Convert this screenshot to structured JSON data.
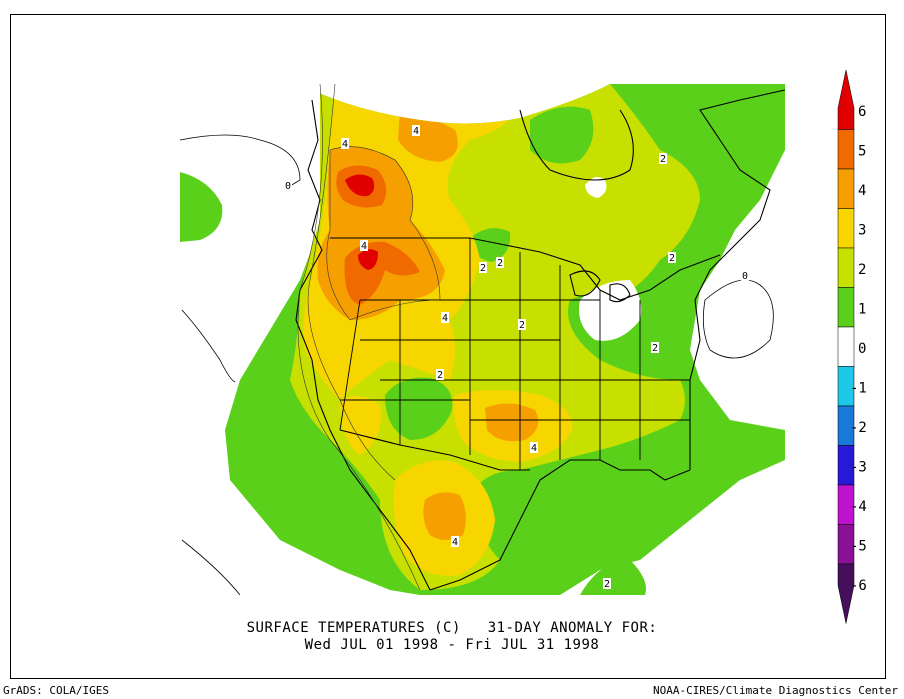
{
  "title_line1": "SURFACE TEMPERATURES (C)   31-DAY ANOMALY FOR:",
  "title_line2": "Wed JUL 01 1998 - Fri JUL 31 1998",
  "footer_left": "GrADS: COLA/IGES",
  "footer_right": "NOAA-CIRES/Climate Diagnostics Center",
  "colorbar": {
    "levels": [
      "6",
      "5",
      "4",
      "3",
      "2",
      "1",
      "0",
      "-1",
      "-2",
      "-3",
      "-4",
      "-5",
      "-6"
    ],
    "colors": [
      "#e00000",
      "#f06a00",
      "#f5a000",
      "#f7d600",
      "#c8e000",
      "#5bd01a",
      "#ffffff",
      "#1ec8e8",
      "#1a78d8",
      "#2818d8",
      "#c010d0",
      "#8a1096",
      "#460f5a"
    ]
  },
  "contour_labels": [
    "4",
    "4",
    "0",
    "2",
    "2",
    "4",
    "2",
    "2",
    "2",
    "4",
    "2",
    "4",
    "4",
    "2",
    "0",
    "2"
  ]
}
